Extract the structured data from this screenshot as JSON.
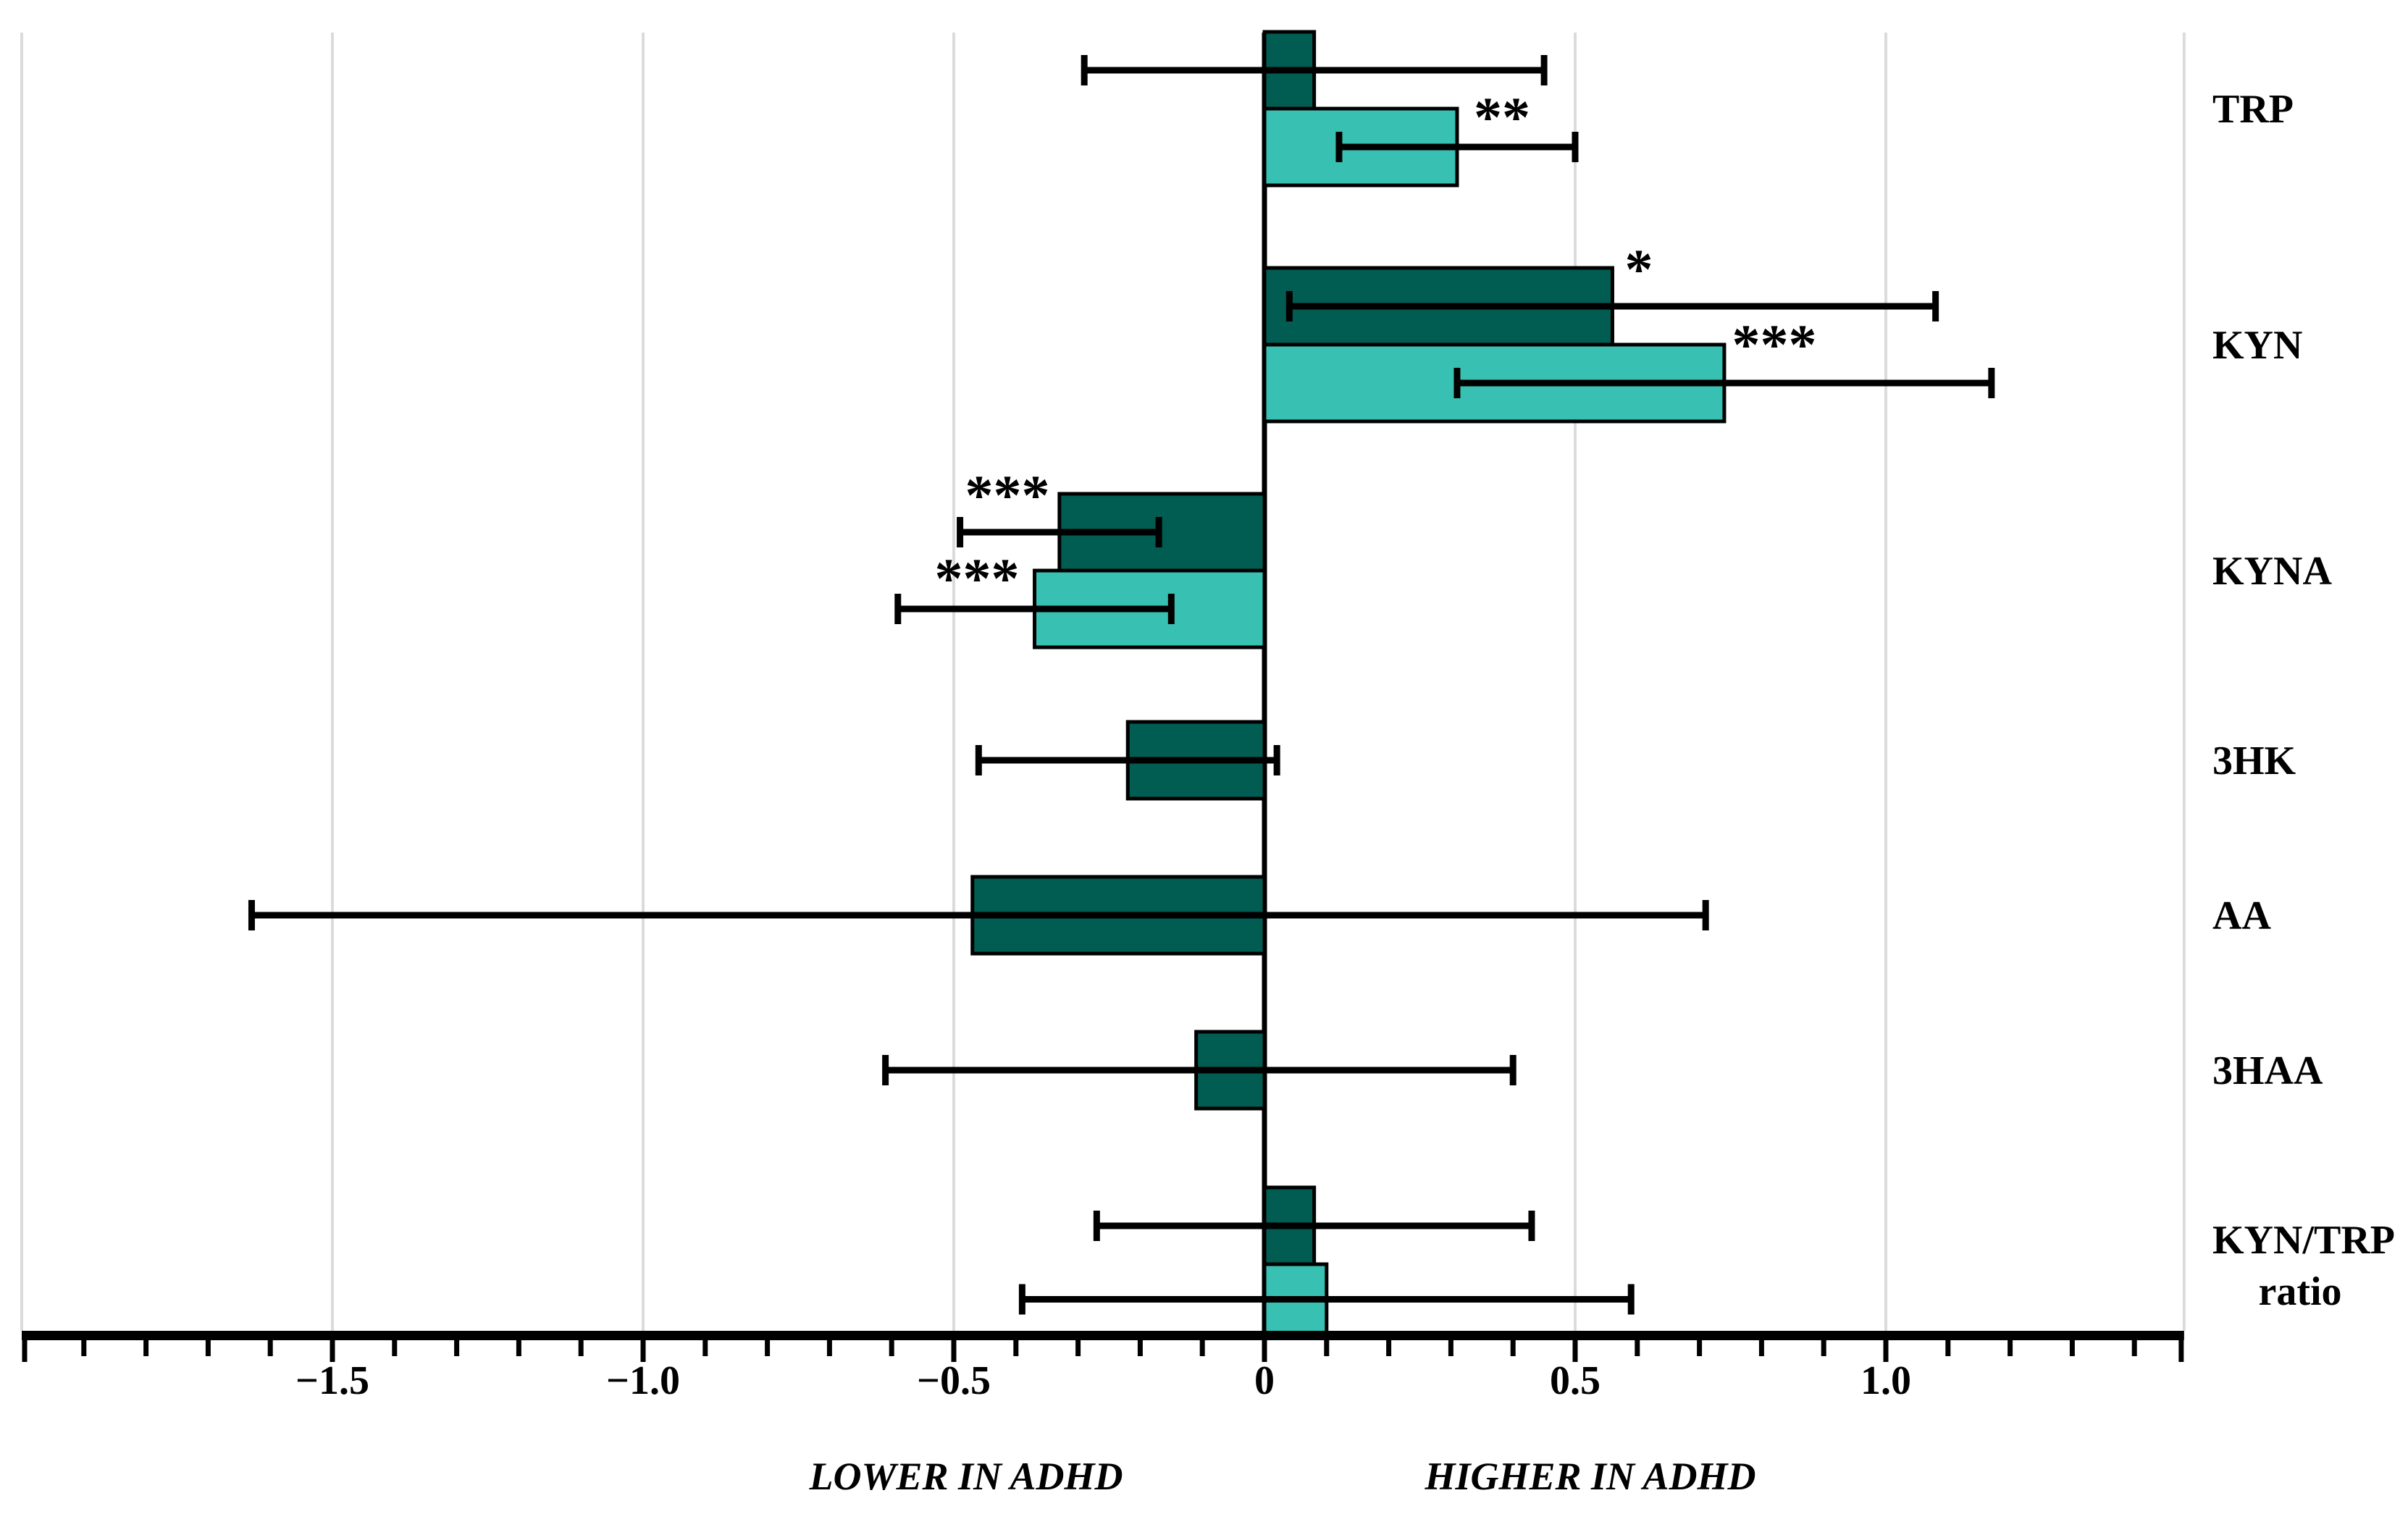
{
  "figure": {
    "background": "#ffffff",
    "colors": {
      "series_dark": "#015C52",
      "series_light": "#38C1B3",
      "bar_stroke": "#000000",
      "gridline": "#DBDBDB",
      "axis": "#000000",
      "text": "#000000"
    },
    "axis": {
      "caption_left": "LOWER IN ADHD",
      "caption_right": "HIGHER IN ADHD",
      "tick_labels": [
        "−1.5",
        "−1.0",
        "−0.5",
        "0",
        "0.5",
        "1.0"
      ],
      "tick_values": [
        -1.5,
        -1.0,
        -0.5,
        0,
        0.5,
        1.0
      ],
      "minor_tick_step": 0.1,
      "range": [
        -2.0,
        1.48
      ],
      "gridline_values": [
        -2.0,
        -1.5,
        -1.0,
        -0.5,
        0.5,
        1.0,
        1.48
      ]
    },
    "chart_data": {
      "type": "bar",
      "orientation": "horizontal",
      "title": "",
      "xlabel": "",
      "ylabel": "",
      "xlim": [
        -2.0,
        1.48
      ],
      "grid": true,
      "legend": "none",
      "categories": [
        "TRP",
        "KYN",
        "KYNA",
        "3HK",
        "AA",
        "3HAA",
        "KYN/TRP ratio"
      ],
      "category_lines": [
        [
          "TRP"
        ],
        [
          "KYN"
        ],
        [
          "KYNA"
        ],
        [
          "3HK"
        ],
        [
          "AA"
        ],
        [
          "3HAA"
        ],
        [
          "KYN/TRP",
          "ratio"
        ]
      ],
      "series": [
        {
          "name": "dark-teal-series",
          "color": "#015C52",
          "values": [
            0.08,
            0.56,
            -0.33,
            -0.22,
            -0.47,
            -0.11,
            0.08
          ],
          "ci_low": [
            -0.29,
            0.04,
            -0.49,
            -0.46,
            -1.63,
            -0.61,
            -0.27
          ],
          "ci_high": [
            0.45,
            1.08,
            -0.17,
            0.02,
            0.71,
            0.4,
            0.43
          ],
          "significance": [
            "",
            "*",
            "***",
            "",
            "",
            "",
            ""
          ]
        },
        {
          "name": "light-teal-series",
          "color": "#38C1B3",
          "values": [
            0.31,
            0.74,
            -0.37,
            null,
            null,
            null,
            0.1
          ],
          "ci_low": [
            0.12,
            0.31,
            -0.59,
            null,
            null,
            null,
            -0.39
          ],
          "ci_high": [
            0.5,
            1.17,
            -0.15,
            null,
            null,
            null,
            0.59
          ],
          "significance": [
            "**",
            "***",
            "***",
            "",
            "",
            "",
            ""
          ]
        }
      ]
    }
  }
}
